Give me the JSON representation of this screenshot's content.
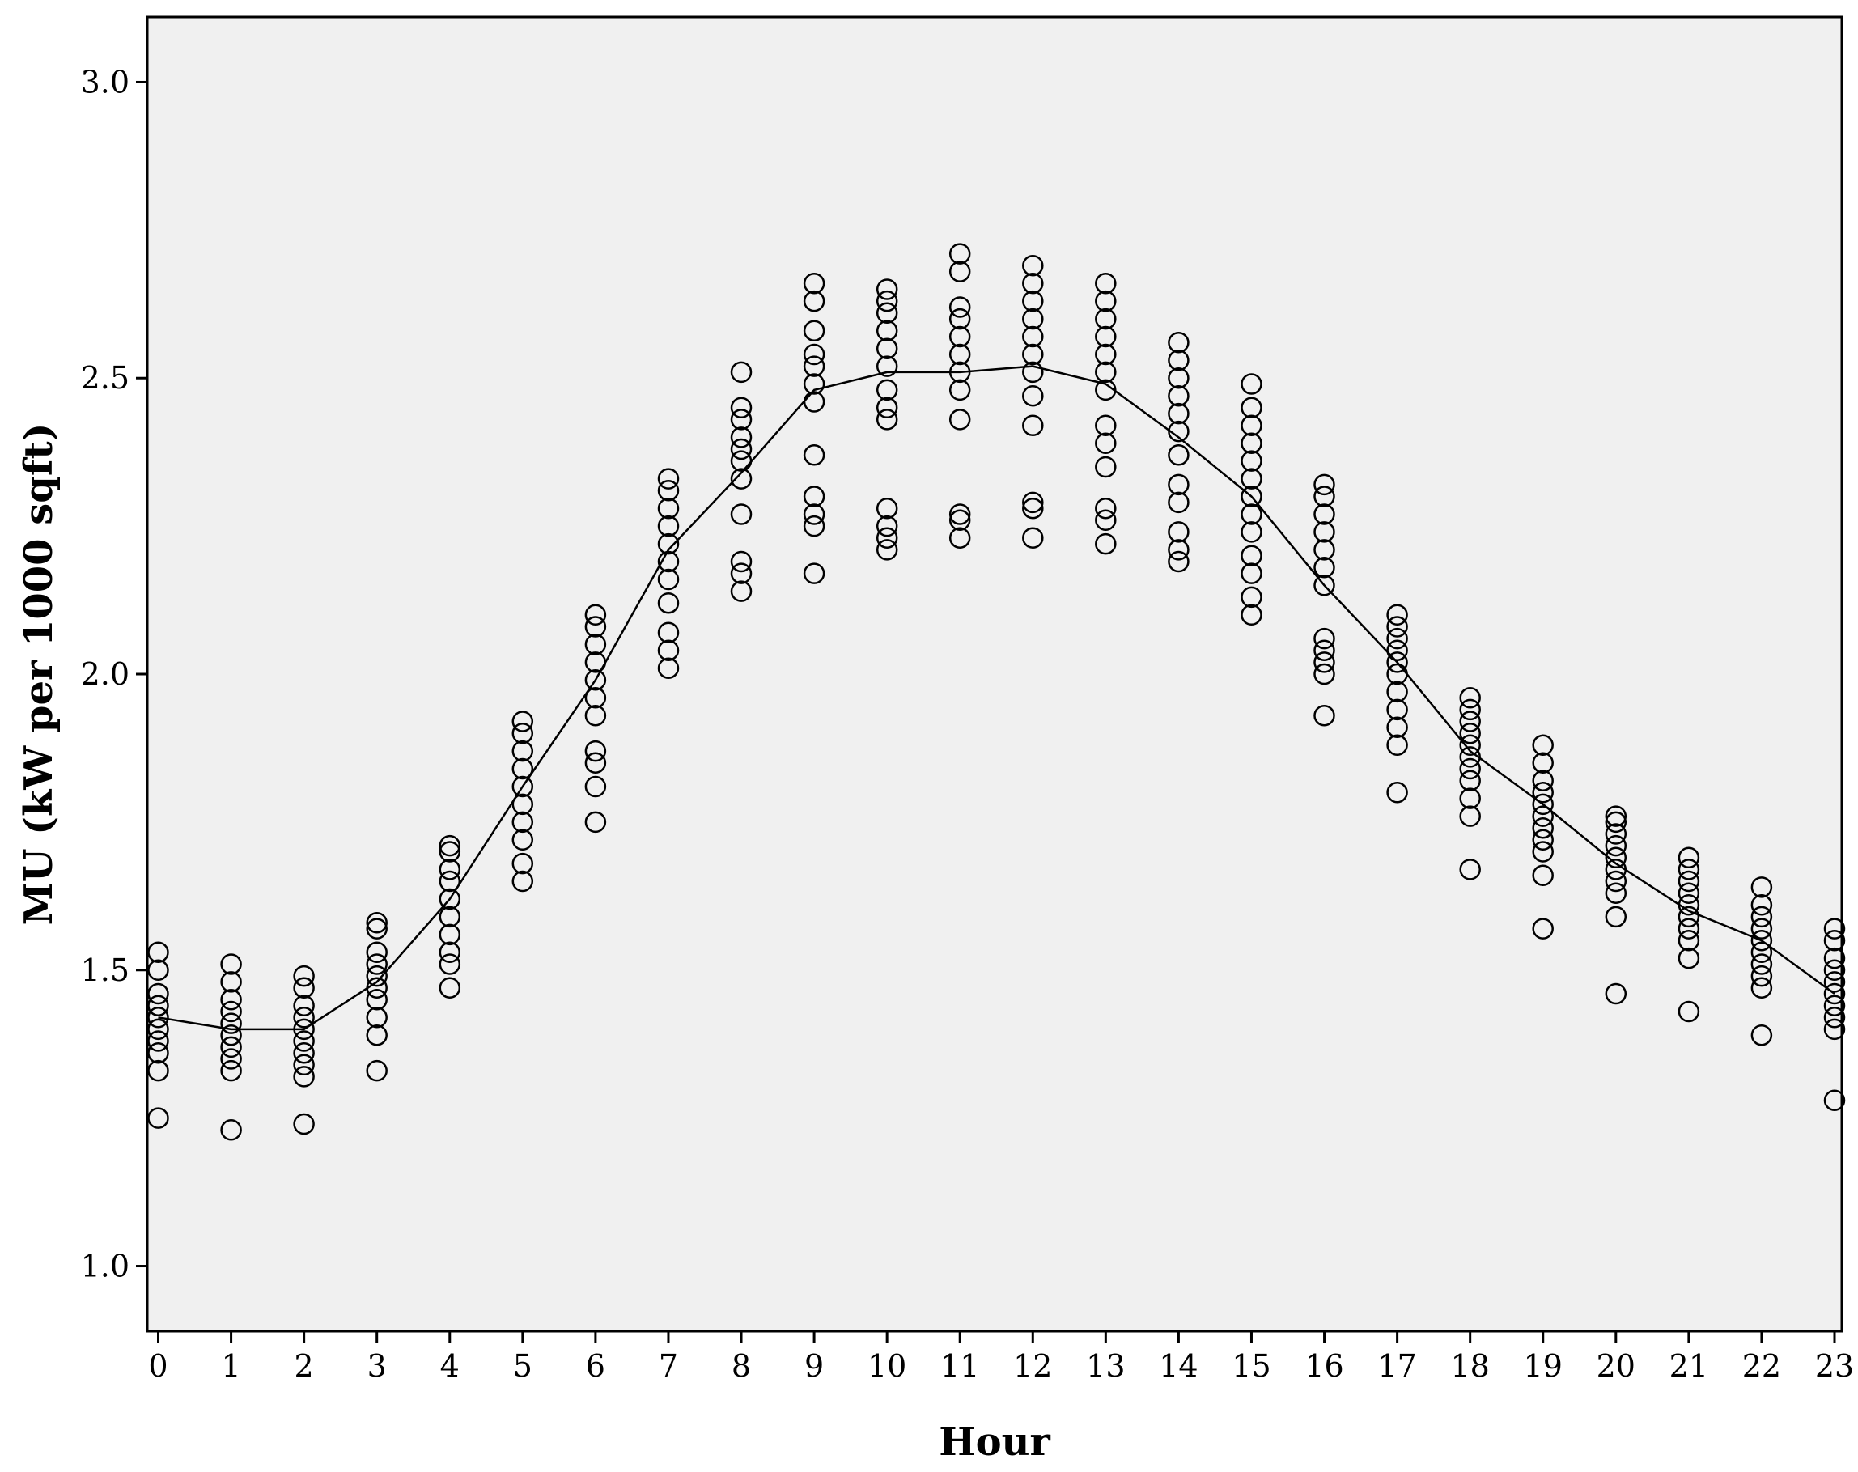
{
  "chart_data": {
    "type": "scatter",
    "xlabel": "Hour",
    "ylabel": "MU (kW per 1000 sqft)",
    "xlim": [
      -0.15,
      23.1
    ],
    "ylim": [
      0.89,
      3.11
    ],
    "x_ticks": [
      "0",
      "1",
      "2",
      "3",
      "4",
      "5",
      "6",
      "7",
      "8",
      "9",
      "10",
      "11",
      "12",
      "13",
      "14",
      "15",
      "16",
      "17",
      "18",
      "19",
      "20",
      "21",
      "22",
      "23"
    ],
    "y_ticks": [
      "1.0",
      "1.5",
      "2.0",
      "2.5",
      "3.0"
    ],
    "y_tick_values": [
      1.0,
      1.5,
      2.0,
      2.5,
      3.0
    ],
    "grid": false,
    "legend": "none",
    "colors": {
      "background": "#f0f0f0",
      "marker": "#000000",
      "line": "#000000"
    },
    "series": [
      {
        "type": "scatter",
        "marker": "open-circle",
        "points": [
          [
            0,
            1.25
          ],
          [
            0,
            1.33
          ],
          [
            0,
            1.36
          ],
          [
            0,
            1.38
          ],
          [
            0,
            1.4
          ],
          [
            0,
            1.42
          ],
          [
            0,
            1.44
          ],
          [
            0,
            1.46
          ],
          [
            0,
            1.5
          ],
          [
            0,
            1.53
          ],
          [
            1,
            1.23
          ],
          [
            1,
            1.33
          ],
          [
            1,
            1.35
          ],
          [
            1,
            1.37
          ],
          [
            1,
            1.39
          ],
          [
            1,
            1.41
          ],
          [
            1,
            1.43
          ],
          [
            1,
            1.45
          ],
          [
            1,
            1.48
          ],
          [
            1,
            1.51
          ],
          [
            2,
            1.24
          ],
          [
            2,
            1.32
          ],
          [
            2,
            1.34
          ],
          [
            2,
            1.36
          ],
          [
            2,
            1.38
          ],
          [
            2,
            1.4
          ],
          [
            2,
            1.42
          ],
          [
            2,
            1.44
          ],
          [
            2,
            1.47
          ],
          [
            2,
            1.49
          ],
          [
            3,
            1.33
          ],
          [
            3,
            1.39
          ],
          [
            3,
            1.42
          ],
          [
            3,
            1.45
          ],
          [
            3,
            1.47
          ],
          [
            3,
            1.49
          ],
          [
            3,
            1.51
          ],
          [
            3,
            1.53
          ],
          [
            3,
            1.57
          ],
          [
            3,
            1.58
          ],
          [
            4,
            1.47
          ],
          [
            4,
            1.51
          ],
          [
            4,
            1.53
          ],
          [
            4,
            1.56
          ],
          [
            4,
            1.59
          ],
          [
            4,
            1.62
          ],
          [
            4,
            1.65
          ],
          [
            4,
            1.67
          ],
          [
            4,
            1.7
          ],
          [
            4,
            1.71
          ],
          [
            5,
            1.65
          ],
          [
            5,
            1.68
          ],
          [
            5,
            1.72
          ],
          [
            5,
            1.75
          ],
          [
            5,
            1.78
          ],
          [
            5,
            1.81
          ],
          [
            5,
            1.84
          ],
          [
            5,
            1.87
          ],
          [
            5,
            1.9
          ],
          [
            5,
            1.92
          ],
          [
            6,
            1.75
          ],
          [
            6,
            1.81
          ],
          [
            6,
            1.85
          ],
          [
            6,
            1.87
          ],
          [
            6,
            1.93
          ],
          [
            6,
            1.96
          ],
          [
            6,
            1.99
          ],
          [
            6,
            2.02
          ],
          [
            6,
            2.05
          ],
          [
            6,
            2.08
          ],
          [
            6,
            2.1
          ],
          [
            7,
            2.01
          ],
          [
            7,
            2.04
          ],
          [
            7,
            2.07
          ],
          [
            7,
            2.12
          ],
          [
            7,
            2.16
          ],
          [
            7,
            2.19
          ],
          [
            7,
            2.22
          ],
          [
            7,
            2.25
          ],
          [
            7,
            2.28
          ],
          [
            7,
            2.31
          ],
          [
            7,
            2.33
          ],
          [
            8,
            2.14
          ],
          [
            8,
            2.17
          ],
          [
            8,
            2.19
          ],
          [
            8,
            2.27
          ],
          [
            8,
            2.33
          ],
          [
            8,
            2.36
          ],
          [
            8,
            2.38
          ],
          [
            8,
            2.4
          ],
          [
            8,
            2.43
          ],
          [
            8,
            2.45
          ],
          [
            8,
            2.51
          ],
          [
            9,
            2.17
          ],
          [
            9,
            2.25
          ],
          [
            9,
            2.27
          ],
          [
            9,
            2.3
          ],
          [
            9,
            2.37
          ],
          [
            9,
            2.46
          ],
          [
            9,
            2.49
          ],
          [
            9,
            2.52
          ],
          [
            9,
            2.54
          ],
          [
            9,
            2.58
          ],
          [
            9,
            2.63
          ],
          [
            9,
            2.66
          ],
          [
            10,
            2.21
          ],
          [
            10,
            2.23
          ],
          [
            10,
            2.25
          ],
          [
            10,
            2.28
          ],
          [
            10,
            2.43
          ],
          [
            10,
            2.45
          ],
          [
            10,
            2.48
          ],
          [
            10,
            2.52
          ],
          [
            10,
            2.55
          ],
          [
            10,
            2.58
          ],
          [
            10,
            2.61
          ],
          [
            10,
            2.63
          ],
          [
            10,
            2.65
          ],
          [
            11,
            2.23
          ],
          [
            11,
            2.26
          ],
          [
            11,
            2.27
          ],
          [
            11,
            2.43
          ],
          [
            11,
            2.48
          ],
          [
            11,
            2.51
          ],
          [
            11,
            2.54
          ],
          [
            11,
            2.57
          ],
          [
            11,
            2.6
          ],
          [
            11,
            2.62
          ],
          [
            11,
            2.68
          ],
          [
            11,
            2.71
          ],
          [
            12,
            2.23
          ],
          [
            12,
            2.28
          ],
          [
            12,
            2.29
          ],
          [
            12,
            2.42
          ],
          [
            12,
            2.47
          ],
          [
            12,
            2.51
          ],
          [
            12,
            2.54
          ],
          [
            12,
            2.57
          ],
          [
            12,
            2.6
          ],
          [
            12,
            2.63
          ],
          [
            12,
            2.66
          ],
          [
            12,
            2.69
          ],
          [
            13,
            2.22
          ],
          [
            13,
            2.26
          ],
          [
            13,
            2.28
          ],
          [
            13,
            2.35
          ],
          [
            13,
            2.39
          ],
          [
            13,
            2.42
          ],
          [
            13,
            2.48
          ],
          [
            13,
            2.51
          ],
          [
            13,
            2.54
          ],
          [
            13,
            2.57
          ],
          [
            13,
            2.6
          ],
          [
            13,
            2.63
          ],
          [
            13,
            2.66
          ],
          [
            14,
            2.19
          ],
          [
            14,
            2.21
          ],
          [
            14,
            2.24
          ],
          [
            14,
            2.29
          ],
          [
            14,
            2.32
          ],
          [
            14,
            2.37
          ],
          [
            14,
            2.41
          ],
          [
            14,
            2.44
          ],
          [
            14,
            2.47
          ],
          [
            14,
            2.5
          ],
          [
            14,
            2.53
          ],
          [
            14,
            2.56
          ],
          [
            15,
            2.1
          ],
          [
            15,
            2.13
          ],
          [
            15,
            2.17
          ],
          [
            15,
            2.2
          ],
          [
            15,
            2.24
          ],
          [
            15,
            2.27
          ],
          [
            15,
            2.3
          ],
          [
            15,
            2.33
          ],
          [
            15,
            2.36
          ],
          [
            15,
            2.39
          ],
          [
            15,
            2.42
          ],
          [
            15,
            2.45
          ],
          [
            15,
            2.49
          ],
          [
            16,
            1.93
          ],
          [
            16,
            2.0
          ],
          [
            16,
            2.02
          ],
          [
            16,
            2.04
          ],
          [
            16,
            2.06
          ],
          [
            16,
            2.15
          ],
          [
            16,
            2.18
          ],
          [
            16,
            2.21
          ],
          [
            16,
            2.24
          ],
          [
            16,
            2.27
          ],
          [
            16,
            2.3
          ],
          [
            16,
            2.32
          ],
          [
            17,
            1.8
          ],
          [
            17,
            1.88
          ],
          [
            17,
            1.91
          ],
          [
            17,
            1.94
          ],
          [
            17,
            1.97
          ],
          [
            17,
            2.0
          ],
          [
            17,
            2.02
          ],
          [
            17,
            2.04
          ],
          [
            17,
            2.06
          ],
          [
            17,
            2.08
          ],
          [
            17,
            2.1
          ],
          [
            18,
            1.67
          ],
          [
            18,
            1.76
          ],
          [
            18,
            1.79
          ],
          [
            18,
            1.82
          ],
          [
            18,
            1.84
          ],
          [
            18,
            1.86
          ],
          [
            18,
            1.88
          ],
          [
            18,
            1.9
          ],
          [
            18,
            1.92
          ],
          [
            18,
            1.94
          ],
          [
            18,
            1.96
          ],
          [
            19,
            1.57
          ],
          [
            19,
            1.66
          ],
          [
            19,
            1.7
          ],
          [
            19,
            1.72
          ],
          [
            19,
            1.74
          ],
          [
            19,
            1.76
          ],
          [
            19,
            1.78
          ],
          [
            19,
            1.8
          ],
          [
            19,
            1.82
          ],
          [
            19,
            1.85
          ],
          [
            19,
            1.88
          ],
          [
            20,
            1.46
          ],
          [
            20,
            1.59
          ],
          [
            20,
            1.63
          ],
          [
            20,
            1.65
          ],
          [
            20,
            1.67
          ],
          [
            20,
            1.69
          ],
          [
            20,
            1.71
          ],
          [
            20,
            1.73
          ],
          [
            20,
            1.75
          ],
          [
            20,
            1.76
          ],
          [
            21,
            1.43
          ],
          [
            21,
            1.52
          ],
          [
            21,
            1.55
          ],
          [
            21,
            1.57
          ],
          [
            21,
            1.59
          ],
          [
            21,
            1.61
          ],
          [
            21,
            1.63
          ],
          [
            21,
            1.65
          ],
          [
            21,
            1.67
          ],
          [
            21,
            1.69
          ],
          [
            22,
            1.39
          ],
          [
            22,
            1.47
          ],
          [
            22,
            1.49
          ],
          [
            22,
            1.51
          ],
          [
            22,
            1.53
          ],
          [
            22,
            1.55
          ],
          [
            22,
            1.57
          ],
          [
            22,
            1.59
          ],
          [
            22,
            1.61
          ],
          [
            22,
            1.64
          ],
          [
            23,
            1.28
          ],
          [
            23,
            1.4
          ],
          [
            23,
            1.42
          ],
          [
            23,
            1.44
          ],
          [
            23,
            1.46
          ],
          [
            23,
            1.48
          ],
          [
            23,
            1.5
          ],
          [
            23,
            1.52
          ],
          [
            23,
            1.55
          ],
          [
            23,
            1.57
          ]
        ]
      },
      {
        "type": "line",
        "points": [
          [
            0,
            1.42
          ],
          [
            1,
            1.4
          ],
          [
            2,
            1.4
          ],
          [
            3,
            1.48
          ],
          [
            4,
            1.62
          ],
          [
            5,
            1.81
          ],
          [
            6,
            1.99
          ],
          [
            7,
            2.21
          ],
          [
            8,
            2.34
          ],
          [
            9,
            2.48
          ],
          [
            10,
            2.51
          ],
          [
            11,
            2.51
          ],
          [
            12,
            2.52
          ],
          [
            13,
            2.49
          ],
          [
            14,
            2.4
          ],
          [
            15,
            2.3
          ],
          [
            16,
            2.15
          ],
          [
            17,
            2.02
          ],
          [
            18,
            1.87
          ],
          [
            19,
            1.78
          ],
          [
            20,
            1.68
          ],
          [
            21,
            1.6
          ],
          [
            22,
            1.55
          ],
          [
            23,
            1.46
          ]
        ]
      }
    ]
  }
}
